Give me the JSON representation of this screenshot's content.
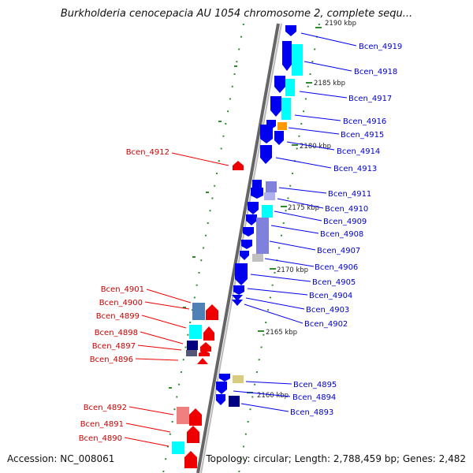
{
  "title": "Burkholderia cenocepacia AU 1054 chromosome 2, complete sequ...",
  "footer": {
    "accession": "Accession: NC_008061",
    "summary": "Topology: circular; Length: 2,788,459 bp; Genes: 2,482"
  },
  "colors": {
    "plus_strand": "#0000ee",
    "minus_strand": "#ee0000",
    "cyan": "#00ffff",
    "steel": "#4f80b6",
    "orange": "#ff9900",
    "lavender": "#8080dd",
    "khaki": "#d8cc80",
    "navy": "#000080",
    "grid": "#2e8b2e",
    "backbone": "#888888"
  },
  "kbp_markers": [
    "2190 kbp",
    "2185 kbp",
    "2180 kbp",
    "2175 kbp",
    "2170 kbp",
    "2165 kbp",
    "2160 kbp"
  ],
  "genes_right": [
    "Bcen_4919",
    "Bcen_4918",
    "Bcen_4917",
    "Bcen_4916",
    "Bcen_4915",
    "Bcen_4914",
    "Bcen_4913",
    "Bcen_4911",
    "Bcen_4910",
    "Bcen_4909",
    "Bcen_4908",
    "Bcen_4907",
    "Bcen_4906",
    "Bcen_4905",
    "Bcen_4904",
    "Bcen_4903",
    "Bcen_4902",
    "Bcen_4895",
    "Bcen_4894",
    "Bcen_4893"
  ],
  "genes_left": [
    "Bcen_4912",
    "Bcen_4901",
    "Bcen_4900",
    "Bcen_4899",
    "Bcen_4898",
    "Bcen_4897",
    "Bcen_4896",
    "Bcen_4892",
    "Bcen_4891",
    "Bcen_4890"
  ]
}
